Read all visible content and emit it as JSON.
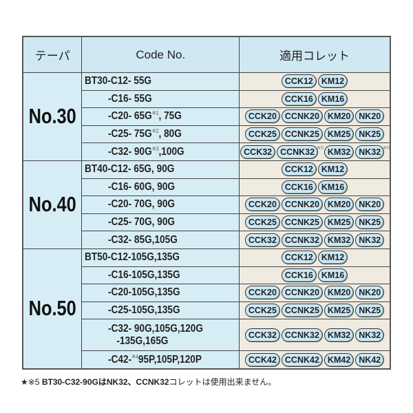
{
  "headers": {
    "taper": "テーパ",
    "code": "Code No.",
    "collet": "適用コレット"
  },
  "groups": [
    {
      "taper": "No.30",
      "rows": [
        {
          "code": "BT30-C12-  55G",
          "collets": [
            "CCK12",
            "KM12"
          ]
        },
        {
          "code": "-C16-  55G",
          "collets": [
            "CCK16",
            "KM16"
          ]
        },
        {
          "code": "-C20-  65G",
          "note": "※1",
          "code2": ",  75G",
          "collets": [
            "CCK20",
            "CCNK20",
            "KM20",
            "NK20"
          ]
        },
        {
          "code": "-C25-  75G",
          "note": "※2",
          "code2": ",  80G",
          "collets": [
            "CCK25",
            "CCNK25",
            "KM25",
            "NK25"
          ]
        },
        {
          "code": "-C32-  90G",
          "note": "※3",
          "code2": ",100G",
          "collets": [
            "CCK32",
            "CCNK32",
            "KM32",
            "NK32"
          ],
          "collet_note": "※5"
        }
      ]
    },
    {
      "taper": "No.40",
      "rows": [
        {
          "code": "BT40-C12-  65G,  90G",
          "collets": [
            "CCK12",
            "KM12"
          ]
        },
        {
          "code": "-C16-  60G,  90G",
          "collets": [
            "CCK16",
            "KM16"
          ]
        },
        {
          "code": "-C20-  70G,  90G",
          "collets": [
            "CCK20",
            "CCNK20",
            "KM20",
            "NK20"
          ]
        },
        {
          "code": "-C25-  70G,  90G",
          "collets": [
            "CCK25",
            "CCNK25",
            "KM25",
            "NK25"
          ]
        },
        {
          "code": "-C32-  85G,105G",
          "collets": [
            "CCK32",
            "CCNK32",
            "KM32",
            "NK32"
          ]
        }
      ]
    },
    {
      "taper": "No.50",
      "rows": [
        {
          "code": "BT50-C12-105G,135G",
          "collets": [
            "CCK12",
            "KM12"
          ]
        },
        {
          "code": "-C16-105G,135G",
          "collets": [
            "CCK16",
            "KM16"
          ]
        },
        {
          "code": "-C20-105G,135G",
          "collets": [
            "CCK20",
            "CCNK20",
            "KM20",
            "NK20"
          ]
        },
        {
          "code": "-C25-105G,135G",
          "collets": [
            "CCK25",
            "CCNK25",
            "KM25",
            "NK25"
          ]
        },
        {
          "code": "-C32-  90G,105G,120G",
          "code_line2": "-135G,165G",
          "collets": [
            "CCK32",
            "CCNK32",
            "KM32",
            "NK32"
          ]
        },
        {
          "code": "-C42-",
          "note": "※4",
          "code2": "95P,105P,120P",
          "collets": [
            "CCK42",
            "CCNK42",
            "KM42",
            "NK42"
          ]
        }
      ]
    }
  ],
  "footnote": {
    "prefix": "★※5 ",
    "bold": "BT30-C32-90GはNK32、CCNK32",
    "rest": "コレットは使用出来ません。"
  }
}
